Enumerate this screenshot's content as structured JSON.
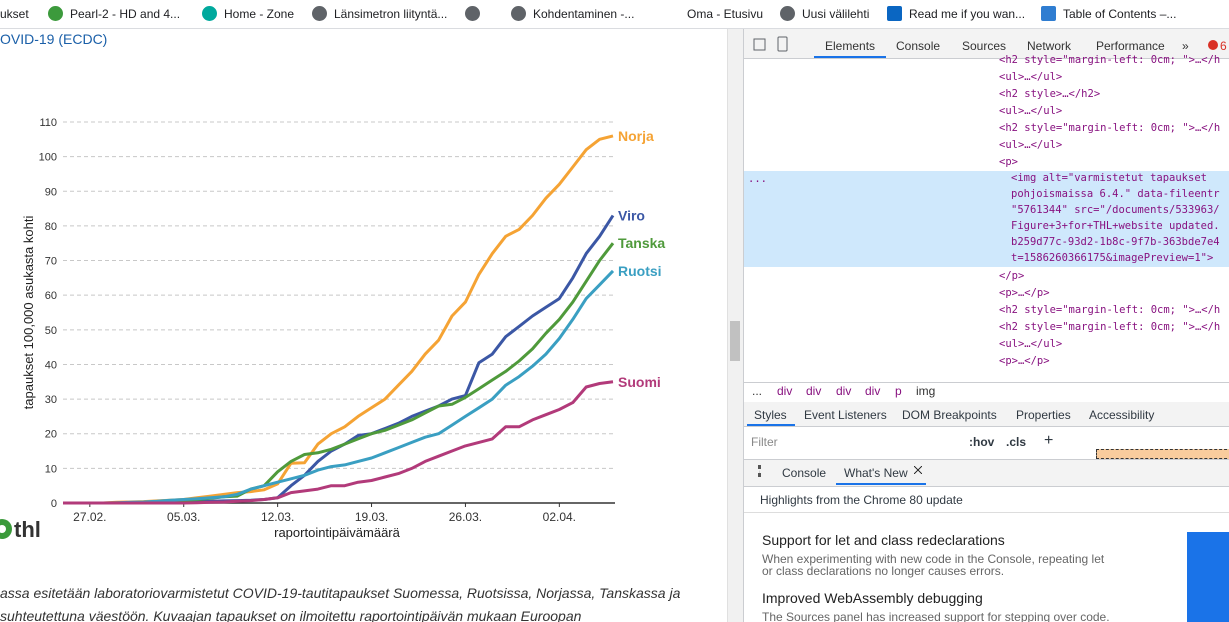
{
  "bookmarks": [
    "ukset",
    "Pearl-2 - HD and 4...",
    "Home - Zone",
    "Länsimetron liityntä...",
    "Kohdentaminen -...",
    "Oma - Etusivu",
    "Uusi välilehti",
    "Read me if you wan...",
    "Table of Contents –..."
  ],
  "page": {
    "header_link": "OVID-19 (ECDC)",
    "logo": "thl",
    "caption": [
      "assa esitetään laboratoriovarmistetut COVID-19-tautitapaukset Suomessa, Ruotsissa, Norjassa, Tanskassa ja",
      " suhteutettuna väestöön. Kuvaajan tapaukset on ilmoitettu raportointipäivän mukaan Euroopan"
    ]
  },
  "chart_data": {
    "type": "line",
    "xlabel": "raportointipäivämäärä",
    "ylabel": "tapaukset 100,000 asukasta kohti",
    "categories": [
      null,
      null,
      "27.02.",
      null,
      null,
      null,
      null,
      null,
      null,
      "05.03.",
      null,
      null,
      null,
      null,
      null,
      null,
      "12.03.",
      null,
      null,
      null,
      null,
      null,
      null,
      "19.03.",
      null,
      null,
      null,
      null,
      null,
      null,
      "26.03.",
      null,
      null,
      null,
      null,
      null,
      null,
      "02.04.",
      null,
      null,
      null,
      null
    ],
    "ylim": [
      0,
      110
    ],
    "yticks": [
      0,
      10,
      20,
      30,
      40,
      50,
      60,
      70,
      80,
      90,
      100,
      110
    ],
    "grid": true,
    "series": [
      {
        "name": "Norja",
        "color": "#f5a334",
        "values": [
          0,
          0,
          0,
          0,
          0.2,
          0.3,
          0.4,
          0.6,
          0.8,
          1.0,
          1.5,
          2,
          2.5,
          3,
          3.3,
          3.8,
          5.5,
          11.5,
          11.6,
          17,
          20,
          22,
          25,
          27.5,
          30,
          34,
          38,
          43,
          47,
          54,
          58,
          66,
          72,
          77,
          79,
          83,
          88,
          92,
          97,
          102,
          105,
          106
        ]
      },
      {
        "name": "Viro",
        "color": "#3b57a5",
        "values": [
          0,
          0,
          0,
          0,
          0,
          0,
          0,
          0.1,
          0.2,
          0.3,
          0.4,
          0.5,
          0.6,
          0.7,
          0.8,
          1.0,
          1.5,
          5,
          8,
          12,
          15,
          17,
          19.5,
          20,
          21.5,
          23,
          25,
          26.5,
          28,
          30,
          31,
          40.5,
          43,
          48,
          51,
          54,
          56.5,
          59,
          65,
          72,
          77,
          83
        ]
      },
      {
        "name": "Tanska",
        "color": "#4f9a3b",
        "values": [
          0,
          0,
          0,
          0,
          0,
          0.1,
          0.2,
          0.3,
          0.5,
          0.7,
          1.0,
          1.4,
          1.8,
          2,
          4,
          5,
          9,
          12,
          14,
          14.5,
          15.5,
          17,
          18.5,
          20,
          21,
          22.5,
          24,
          26,
          28,
          28.5,
          30.5,
          33,
          35.5,
          38,
          41,
          44.5,
          49,
          53,
          58,
          64,
          70,
          75
        ]
      },
      {
        "name": "Ruotsi",
        "color": "#3a9fc2",
        "values": [
          0,
          0,
          0,
          0,
          0.1,
          0.2,
          0.3,
          0.5,
          0.8,
          1.0,
          1.2,
          1.5,
          1.8,
          2.5,
          4,
          5,
          6,
          7,
          8,
          9.5,
          10.5,
          11,
          12,
          13,
          14.5,
          16,
          17.5,
          19,
          20,
          22.5,
          25,
          27.5,
          30,
          34,
          36.5,
          39.5,
          43,
          47.5,
          53,
          59,
          63,
          67
        ]
      },
      {
        "name": "Suomi",
        "color": "#b23a7a",
        "values": [
          0,
          0,
          0,
          0,
          0,
          0,
          0,
          0,
          0,
          0,
          0.1,
          0.2,
          0.3,
          0.5,
          0.7,
          1,
          1.5,
          3,
          3.5,
          4,
          5,
          5,
          6,
          6.5,
          7.5,
          8.5,
          10,
          12,
          13.5,
          15,
          16.5,
          17.5,
          18.5,
          22,
          22,
          24,
          25.5,
          27,
          29,
          33.5,
          34.5,
          35
        ]
      }
    ]
  },
  "devtools": {
    "tabs": [
      "Elements",
      "Console",
      "Sources",
      "Network",
      "Performance",
      "»"
    ],
    "error_count": 6,
    "dom_lines": [
      "<h2 style=\"margin-left: 0cm; \">…</h",
      "<ul>…</ul>",
      "<h2 style>…</h2>",
      "<ul>…</ul>",
      "<h2 style=\"margin-left: 0cm; \">…</h",
      "<ul>…</ul>",
      "<p>"
    ],
    "selected_dots": "...",
    "selected_lines": [
      "<img alt=\"varmistetut tapaukset",
      "pohjoismaissa 6.4.\" data-fileentr",
      "\"5761344\" src=\"/documents/533963/",
      "Figure+3+for+THL+website updated.",
      "b259d77c-93d2-1b8c-9f7b-363bde7e4",
      "t=1586260366175&imagePreview=1\">"
    ],
    "after_lines": [
      "</p>",
      "<p>…</p>",
      "<h2 style=\"margin-left: 0cm; \">…</h",
      "<h2 style=\"margin-left: 0cm; \">…</h",
      "<ul>…</ul>",
      "<p>…</p>"
    ],
    "breadcrumb": [
      "...",
      "div",
      "div",
      "div",
      "div",
      "p",
      "img"
    ],
    "style_tabs": [
      "Styles",
      "Event Listeners",
      "DOM Breakpoints",
      "Properties",
      "Accessibility"
    ],
    "filter": "Filter",
    "hov": ":hov",
    "cls": ".cls",
    "plus": "+",
    "drawer_tabs": [
      "Console",
      "What's New"
    ],
    "highlights": "Highlights from the Chrome 80 update",
    "items": [
      {
        "title": "Support for let and class redeclarations",
        "text": [
          "When experimenting with new code in the Console, repeating let",
          "or class declarations no longer causes errors."
        ]
      },
      {
        "title": "Improved WebAssembly debugging",
        "text": [
          "The Sources panel has increased support for stepping over code."
        ]
      }
    ]
  }
}
